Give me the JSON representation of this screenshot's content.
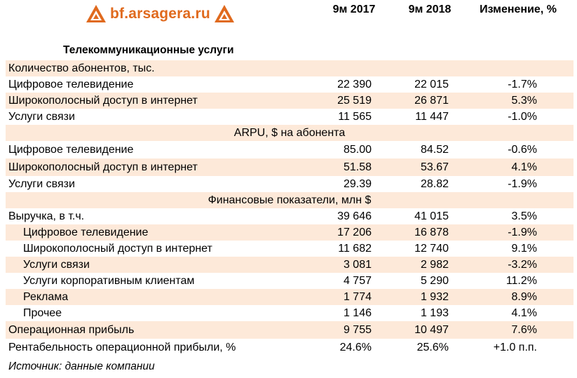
{
  "logo": {
    "text": "bf.arsagera.ru"
  },
  "colors": {
    "accent": "#e06a1e",
    "row_shade": "#fde9d9"
  },
  "header": {
    "col1": "9м 2017",
    "col2": "9м 2018",
    "col3": "Изменение, %"
  },
  "section_title": "Телекоммуникационные услуги",
  "rows": [
    {
      "label": "Количество абонентов, тыс.",
      "type": "subhead-left",
      "v1": "",
      "v2": "",
      "v3": ""
    },
    {
      "label": "Цифровое телевидение",
      "type": "data",
      "v1": "22 390",
      "v2": "22 015",
      "v3": "-1.7%"
    },
    {
      "label": "Широкополосный доступ в интернет",
      "type": "data",
      "v1": "25 519",
      "v2": "26 871",
      "v3": "5.3%"
    },
    {
      "label": "Услуги связи",
      "type": "data",
      "v1": "11 565",
      "v2": "11 447",
      "v3": "-1.0%"
    },
    {
      "label": "ARPU, $ на абонента",
      "type": "subhead-center",
      "v1": "",
      "v2": "",
      "v3": ""
    },
    {
      "label": "Цифровое телевидение",
      "type": "data",
      "v1": "85.00",
      "v2": "84.52",
      "v3": "-0.6%"
    },
    {
      "label": "Широкополосный доступ в интернет",
      "type": "data",
      "v1": "51.58",
      "v2": "53.67",
      "v3": "4.1%"
    },
    {
      "label": "Услуги связи",
      "type": "data",
      "v1": "29.39",
      "v2": "28.82",
      "v3": "-1.9%"
    },
    {
      "label": "Финансовые показатели, млн $",
      "type": "subhead-center",
      "v1": "",
      "v2": "",
      "v3": ""
    },
    {
      "label": "Выручка, в т.ч.",
      "type": "data",
      "v1": "39 646",
      "v2": "41 015",
      "v3": "3.5%"
    },
    {
      "label": "Цифровое телевидение",
      "type": "indent",
      "v1": "17 206",
      "v2": "16 878",
      "v3": "-1.9%"
    },
    {
      "label": "Широкополосный доступ в интернет",
      "type": "indent",
      "v1": "11 682",
      "v2": "12 740",
      "v3": "9.1%"
    },
    {
      "label": "Услуги связи",
      "type": "indent",
      "v1": "3 081",
      "v2": "2 982",
      "v3": "-3.2%"
    },
    {
      "label": "Услуги корпоративным клиентам",
      "type": "indent",
      "v1": "4 757",
      "v2": "5 290",
      "v3": "11.2%"
    },
    {
      "label": "Реклама",
      "type": "indent",
      "v1": "1 774",
      "v2": "1 932",
      "v3": "8.9%"
    },
    {
      "label": "Прочее",
      "type": "indent",
      "v1": "1 146",
      "v2": "1 193",
      "v3": "4.1%"
    },
    {
      "label": "Операционная прибыль",
      "type": "data",
      "v1": "9 755",
      "v2": "10 497",
      "v3": "7.6%"
    },
    {
      "label": "Рентабельность операционной прибыли, %",
      "type": "data",
      "v1": "24.6%",
      "v2": "25.6%",
      "v3": "+1.0 п.п."
    }
  ],
  "source": "Источник: данные компании"
}
